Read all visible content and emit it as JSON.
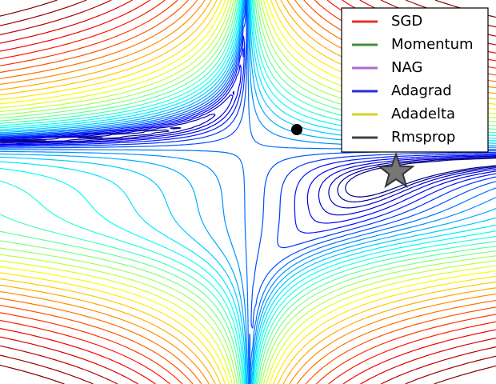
{
  "chart_data": {
    "type": "contour",
    "series": [
      {
        "name": "SGD",
        "color": "#e8302e"
      },
      {
        "name": "Momentum",
        "color": "#3c8f3c"
      },
      {
        "name": "NAG",
        "color": "#b36ad0"
      },
      {
        "name": "Adagrad",
        "color": "#2b2bd6"
      },
      {
        "name": "Adadelta",
        "color": "#d4d42a"
      },
      {
        "name": "Rmsprop",
        "color": "#404040"
      }
    ],
    "legend": "upper right"
  }
}
